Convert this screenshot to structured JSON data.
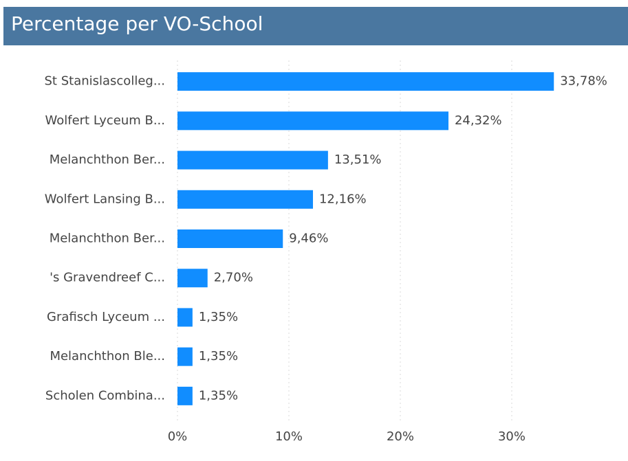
{
  "chart_data": {
    "type": "bar",
    "orientation": "horizontal",
    "title": "Percentage per VO-School",
    "categories": [
      "St Stanislascolleg...",
      "Wolfert Lyceum B...",
      "Melanchthon Ber...",
      "Wolfert Lansing B...",
      "Melanchthon Ber...",
      "'s Gravendreef C...",
      "Grafisch Lyceum ...",
      "Melanchthon Ble...",
      "Scholen Combina..."
    ],
    "values": [
      33.78,
      24.32,
      13.51,
      12.16,
      9.46,
      2.7,
      1.35,
      1.35,
      1.35
    ],
    "value_labels": [
      "33,78%",
      "24,32%",
      "13,51%",
      "12,16%",
      "9,46%",
      "2,70%",
      "1,35%",
      "1,35%",
      "1,35%"
    ],
    "color": "#118dff",
    "xlim": [
      0,
      40
    ],
    "xticks": [
      {
        "value": 0,
        "label": "0%"
      },
      {
        "value": 10,
        "label": "10%"
      },
      {
        "value": 20,
        "label": "20%"
      },
      {
        "value": 30,
        "label": "30%"
      }
    ],
    "grid": true
  }
}
